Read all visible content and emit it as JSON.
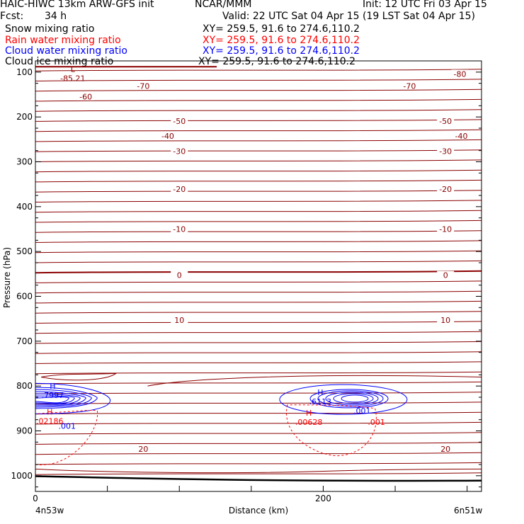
{
  "header": {
    "model": "HAIC-HIWC 13km ARW-GFS init",
    "org": "NCAR/MMM",
    "init": "Init: 12 UTC Fri 03 Apr 15",
    "fcst_label": "Fcst:",
    "fcst_value": "34 h",
    "valid": "Valid: 22 UTC Sat 04 Apr 15 (19 LST Sat 04 Apr 15)"
  },
  "fields": [
    {
      "name": "Snow mixing ratio",
      "xy": "XY= 259.5, 91.6 to 274.6,110.2",
      "color": "#000000"
    },
    {
      "name": "Rain water mixing ratio",
      "xy": "XY= 259.5, 91.6 to 274.6,110.2",
      "color": "#ff0000"
    },
    {
      "name": "Cloud water mixing ratio",
      "xy": "XY= 259.5, 91.6 to 274.6,110.2",
      "color": "#0000ff"
    },
    {
      "name": "Cloud ice mixing ratio",
      "xy": "XY= 259.5, 91.6 to 274.6,110.2",
      "color": "#000000"
    }
  ],
  "chart_data": {
    "type": "line",
    "xlabel": "Distance (km)",
    "ylabel": "Pressure (hPa)",
    "xlim": [
      0,
      310
    ],
    "ylim": [
      1035,
      75
    ],
    "x_ticks": [
      0,
      200
    ],
    "y_ticks": [
      100,
      200,
      300,
      400,
      500,
      600,
      700,
      800,
      900,
      1000
    ],
    "left_endpoint": "4n53w",
    "right_endpoint": "6n51w",
    "colors": {
      "temperature": "#8b0000",
      "cloud_water": "#0000ff",
      "rain_water": "#ff0000",
      "frame": "#000000"
    },
    "isotherm_labels": [
      {
        "value": "-80",
        "x": 295,
        "p": 104
      },
      {
        "value": "-70",
        "x": 75,
        "p": 131
      },
      {
        "value": "-70",
        "x": 260,
        "p": 131
      },
      {
        "value": "-60",
        "x": 35,
        "p": 155
      },
      {
        "value": "-50",
        "x": 100,
        "p": 209
      },
      {
        "value": "-50",
        "x": 285,
        "p": 209
      },
      {
        "value": "-40",
        "x": 92,
        "p": 242
      },
      {
        "value": "-40",
        "x": 296,
        "p": 242
      },
      {
        "value": "-30",
        "x": 100,
        "p": 276
      },
      {
        "value": "-30",
        "x": 285,
        "p": 276
      },
      {
        "value": "-20",
        "x": 100,
        "p": 361
      },
      {
        "value": "-20",
        "x": 285,
        "p": 361
      },
      {
        "value": "-10",
        "x": 100,
        "p": 450
      },
      {
        "value": "-10",
        "x": 285,
        "p": 450
      },
      {
        "value": "0",
        "x": 100,
        "p": 553
      },
      {
        "value": "0",
        "x": 285,
        "p": 553
      },
      {
        "value": "10",
        "x": 100,
        "p": 653
      },
      {
        "value": "10",
        "x": 285,
        "p": 653
      },
      {
        "value": "20",
        "x": 75,
        "p": 940
      },
      {
        "value": "20",
        "x": 285,
        "p": 940
      }
    ],
    "extrema": [
      {
        "type": "L",
        "value": "-85.21",
        "x": 26,
        "p": 93,
        "color": "#8b0000"
      },
      {
        "type": "H",
        "value": ".7997",
        "x": 12,
        "p": 800,
        "color": "#0000ff"
      },
      {
        "type": "H",
        "value": ".6113",
        "x": 198,
        "p": 814,
        "color": "#0000ff"
      },
      {
        "type": "H",
        "value": ".02186",
        "x": 10,
        "p": 857,
        "color": "#ff0000"
      },
      {
        "type": "H",
        "value": ".00628",
        "x": 190,
        "p": 860,
        "color": "#ff0000"
      }
    ],
    "contour_labels": [
      {
        "value": ".001",
        "x": 22,
        "p": 889,
        "color": "#0000ff"
      },
      {
        "value": ".001",
        "x": 227,
        "p": 855,
        "color": "#0000ff"
      },
      {
        "value": ".001",
        "x": 237,
        "p": 880,
        "color": "#ff0000"
      }
    ]
  }
}
